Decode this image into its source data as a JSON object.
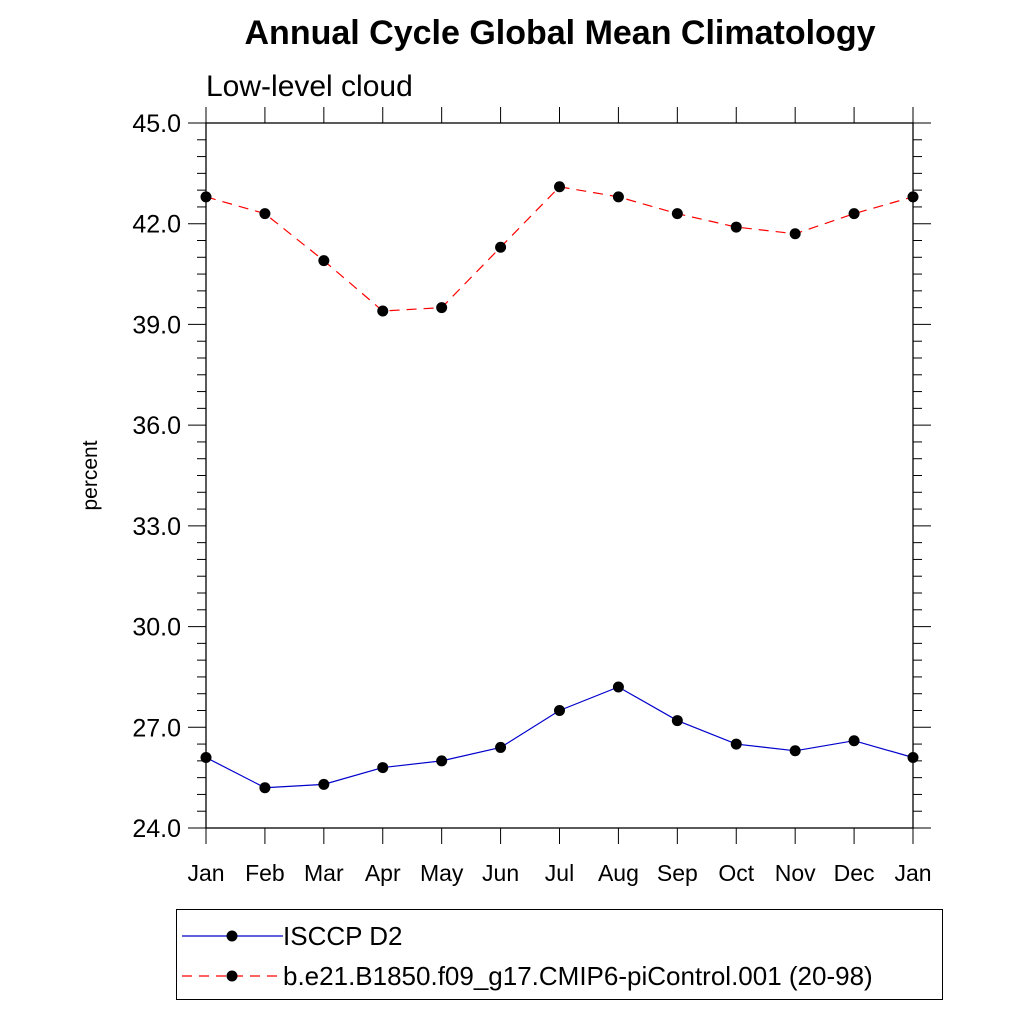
{
  "chart_data": {
    "type": "line",
    "title": "Annual Cycle Global Mean Climatology",
    "subtitle": "Low-level cloud",
    "xlabel": "",
    "ylabel": "percent",
    "categories": [
      "Jan",
      "Feb",
      "Mar",
      "Apr",
      "May",
      "Jun",
      "Jul",
      "Aug",
      "Sep",
      "Oct",
      "Nov",
      "Dec",
      "Jan"
    ],
    "ylim": [
      24.0,
      45.0
    ],
    "yticks": [
      "24.0",
      "27.0",
      "30.0",
      "33.0",
      "36.0",
      "39.0",
      "42.0",
      "45.0"
    ],
    "grid": false,
    "legend_position": "bottom",
    "series": [
      {
        "name": "ISCCP D2",
        "color": "#0000cc",
        "line_style": "solid",
        "marker": "filled-circle",
        "values": [
          26.1,
          25.2,
          25.3,
          25.8,
          26.0,
          26.4,
          27.5,
          28.2,
          27.2,
          26.5,
          26.3,
          26.6,
          26.1
        ]
      },
      {
        "name": "b.e21.B1850.f09_g17.CMIP6-piControl.001 (20-98)",
        "color": "#ff0000",
        "line_style": "dashed",
        "marker": "filled-circle",
        "values": [
          42.8,
          42.3,
          40.9,
          39.4,
          39.5,
          41.3,
          43.1,
          42.8,
          42.3,
          41.9,
          41.7,
          42.3,
          42.8
        ]
      }
    ]
  }
}
